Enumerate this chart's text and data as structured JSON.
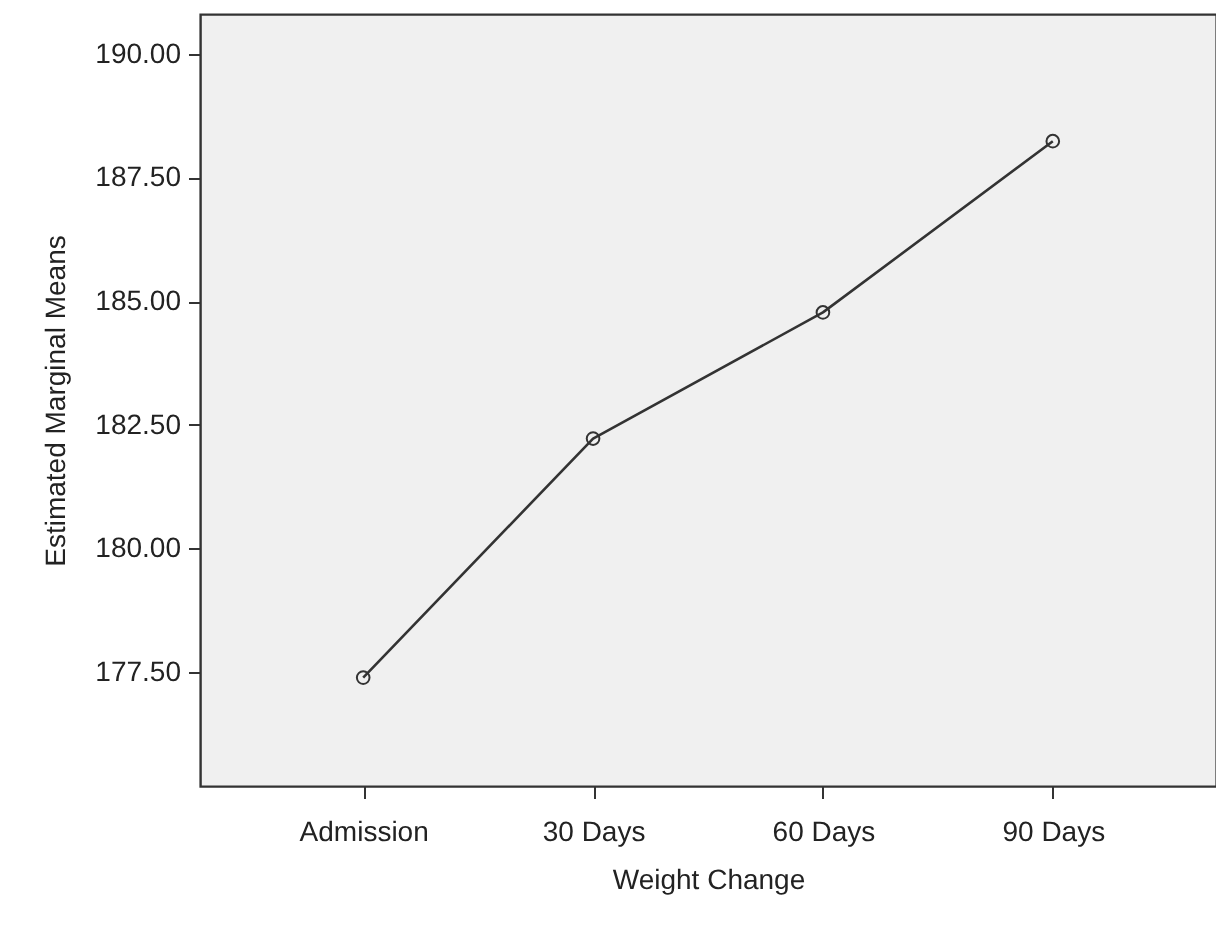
{
  "chart_data": {
    "type": "line",
    "xlabel": "Weight Change",
    "ylabel": "Estimated Marginal Means",
    "categories": [
      "Admission",
      "30 Days",
      "60 Days",
      "90 Days"
    ],
    "series": [
      {
        "color": "#333333",
        "values": [
          177.39,
          182.22,
          184.77,
          188.23
        ]
      }
    ],
    "ylim": [
      175.2,
      190.8
    ],
    "yticks": [
      {
        "value": 177.5,
        "label": "177.50"
      },
      {
        "value": 180,
        "label": "180.00"
      },
      {
        "value": 182.5,
        "label": "182.50"
      },
      {
        "value": 185,
        "label": "185.00"
      },
      {
        "value": 187.5,
        "label": "187.50"
      },
      {
        "value": 190,
        "label": "190.00"
      }
    ],
    "grid": false,
    "marker": "circle",
    "line_style": "solid"
  }
}
